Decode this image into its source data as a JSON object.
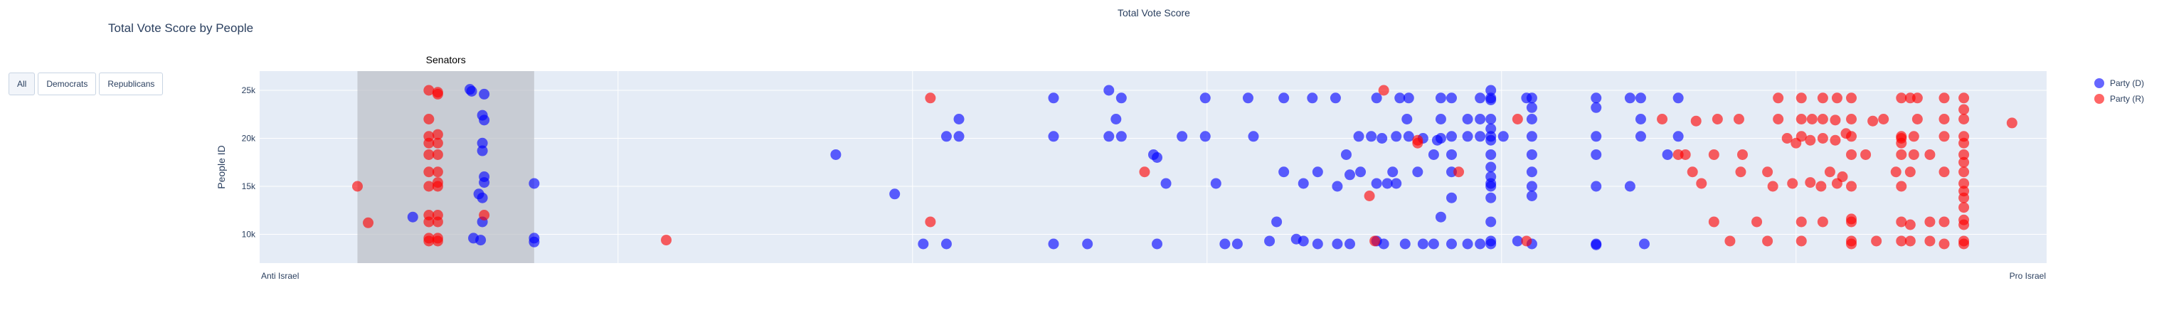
{
  "page": {
    "title": "Total Vote Score by People"
  },
  "filters": {
    "buttons": [
      {
        "label": "All"
      },
      {
        "label": "Democrats"
      },
      {
        "label": "Republicans"
      }
    ]
  },
  "legend": {
    "dem_label": "Party (D)",
    "rep_label": "Party (R)"
  },
  "chart_data": {
    "type": "scatter",
    "title": "Total Vote Score",
    "xlabel": "",
    "ylabel": "People ID",
    "x_range": [
      0,
      100
    ],
    "ylim": [
      7000,
      27000
    ],
    "yticks": [
      10000,
      15000,
      20000,
      25000
    ],
    "ytick_labels": [
      "10k",
      "15k",
      "20k",
      "25k"
    ],
    "x_end_labels": {
      "left": "Anti Israel",
      "right": "Pro Israel"
    },
    "grid": true,
    "legend_position": "right",
    "colors": {
      "dem": "#0000ff",
      "rep": "#ff0000",
      "shade": "#bcbfc6",
      "plot_bg": "#e5ecf6",
      "grid": "#ffffff"
    },
    "annotations": [
      {
        "text": "Senators",
        "x": [
          5.4,
          15.3
        ]
      }
    ],
    "series": [
      {
        "name": "Party (D)",
        "points": [
          [
            8.5,
            11800
          ],
          [
            11.9,
            9600
          ],
          [
            12.2,
            14200
          ],
          [
            11.7,
            25100
          ],
          [
            11.8,
            24900
          ],
          [
            12.5,
            24600
          ],
          [
            12.4,
            22400
          ],
          [
            12.5,
            21900
          ],
          [
            12.4,
            19500
          ],
          [
            12.4,
            18700
          ],
          [
            12.5,
            16000
          ],
          [
            12.5,
            15400
          ],
          [
            12.4,
            13800
          ],
          [
            12.4,
            11300
          ],
          [
            12.3,
            9400
          ],
          [
            15.3,
            15300
          ],
          [
            15.3,
            9200
          ],
          [
            15.3,
            9600
          ],
          [
            32.2,
            18300
          ],
          [
            35.5,
            14200
          ],
          [
            37.1,
            9000
          ],
          [
            38.4,
            9000
          ],
          [
            38.4,
            20200
          ],
          [
            39.1,
            22000
          ],
          [
            39.1,
            20200
          ],
          [
            44.4,
            9000
          ],
          [
            44.4,
            24200
          ],
          [
            44.4,
            20200
          ],
          [
            46.3,
            9000
          ],
          [
            47.5,
            25000
          ],
          [
            47.5,
            20200
          ],
          [
            47.9,
            22000
          ],
          [
            48.2,
            20200
          ],
          [
            48.2,
            24200
          ],
          [
            50.0,
            18300
          ],
          [
            50.2,
            9000
          ],
          [
            50.2,
            18000
          ],
          [
            50.7,
            15300
          ],
          [
            51.6,
            20200
          ],
          [
            52.9,
            24200
          ],
          [
            52.9,
            20200
          ],
          [
            53.5,
            15300
          ],
          [
            54.0,
            9000
          ],
          [
            54.7,
            9000
          ],
          [
            55.3,
            24200
          ],
          [
            55.6,
            20200
          ],
          [
            56.5,
            9300
          ],
          [
            56.9,
            11300
          ],
          [
            57.3,
            16500
          ],
          [
            57.3,
            24200
          ],
          [
            58.0,
            9500
          ],
          [
            58.4,
            15300
          ],
          [
            58.4,
            9300
          ],
          [
            58.9,
            24200
          ],
          [
            59.2,
            16500
          ],
          [
            59.2,
            9000
          ],
          [
            60.2,
            24200
          ],
          [
            60.3,
            15000
          ],
          [
            60.3,
            9000
          ],
          [
            60.8,
            18300
          ],
          [
            61.0,
            9000
          ],
          [
            61.0,
            16200
          ],
          [
            61.5,
            20200
          ],
          [
            61.6,
            16500
          ],
          [
            62.2,
            20200
          ],
          [
            62.5,
            9300
          ],
          [
            62.5,
            24200
          ],
          [
            62.5,
            15300
          ],
          [
            62.8,
            20000
          ],
          [
            62.9,
            9000
          ],
          [
            63.4,
            16500
          ],
          [
            63.1,
            15300
          ],
          [
            63.6,
            15300
          ],
          [
            63.6,
            20200
          ],
          [
            63.8,
            24200
          ],
          [
            64.1,
            9000
          ],
          [
            64.2,
            22000
          ],
          [
            64.3,
            20200
          ],
          [
            64.3,
            24200
          ],
          [
            64.8,
            16500
          ],
          [
            65.1,
            9000
          ],
          [
            65.1,
            20000
          ],
          [
            65.7,
            9000
          ],
          [
            65.7,
            18300
          ],
          [
            65.9,
            19800
          ],
          [
            66.1,
            11800
          ],
          [
            66.1,
            20000
          ],
          [
            66.1,
            22000
          ],
          [
            66.1,
            24200
          ],
          [
            66.7,
            13800
          ],
          [
            66.7,
            9000
          ],
          [
            66.7,
            16500
          ],
          [
            66.7,
            18300
          ],
          [
            66.7,
            20200
          ],
          [
            66.7,
            24200
          ],
          [
            67.6,
            22000
          ],
          [
            67.6,
            9000
          ],
          [
            67.6,
            20200
          ],
          [
            68.3,
            22000
          ],
          [
            68.3,
            24200
          ],
          [
            68.3,
            9000
          ],
          [
            68.3,
            20200
          ],
          [
            68.9,
            9000
          ],
          [
            68.9,
            9300
          ],
          [
            68.9,
            11300
          ],
          [
            68.9,
            13800
          ],
          [
            68.9,
            15000
          ],
          [
            68.9,
            16000
          ],
          [
            68.9,
            17000
          ],
          [
            68.9,
            18300
          ],
          [
            68.9,
            20200
          ],
          [
            68.9,
            22000
          ],
          [
            68.9,
            24200
          ],
          [
            68.9,
            25000
          ],
          [
            68.9,
            24000
          ],
          [
            68.9,
            19800
          ],
          [
            68.9,
            21000
          ],
          [
            68.9,
            15300
          ],
          [
            69.6,
            20200
          ],
          [
            70.4,
            9300
          ],
          [
            70.9,
            24200
          ],
          [
            71.2,
            9000
          ],
          [
            71.2,
            24200
          ],
          [
            71.2,
            22000
          ],
          [
            71.2,
            20200
          ],
          [
            71.2,
            18300
          ],
          [
            71.2,
            16500
          ],
          [
            71.2,
            15000
          ],
          [
            71.2,
            14000
          ],
          [
            71.2,
            23200
          ],
          [
            74.8,
            24200
          ],
          [
            74.8,
            20200
          ],
          [
            74.8,
            18300
          ],
          [
            74.8,
            15000
          ],
          [
            74.8,
            9000
          ],
          [
            74.8,
            8900
          ],
          [
            74.8,
            23200
          ],
          [
            76.7,
            15000
          ],
          [
            76.7,
            24200
          ],
          [
            77.3,
            24200
          ],
          [
            77.3,
            20200
          ],
          [
            77.3,
            22000
          ],
          [
            77.5,
            9000
          ],
          [
            78.8,
            18300
          ],
          [
            79.4,
            20200
          ],
          [
            79.4,
            24200
          ]
        ]
      },
      {
        "name": "Party (R)",
        "points": [
          [
            5.4,
            15000
          ],
          [
            6.0,
            11200
          ],
          [
            9.4,
            25000
          ],
          [
            9.4,
            22000
          ],
          [
            9.4,
            20200
          ],
          [
            9.4,
            19500
          ],
          [
            9.4,
            18300
          ],
          [
            9.4,
            16500
          ],
          [
            9.4,
            15000
          ],
          [
            9.4,
            12000
          ],
          [
            9.4,
            11300
          ],
          [
            9.4,
            9600
          ],
          [
            9.4,
            9300
          ],
          [
            9.9,
            24800
          ],
          [
            9.9,
            24600
          ],
          [
            9.9,
            20400
          ],
          [
            9.9,
            19500
          ],
          [
            9.9,
            18300
          ],
          [
            9.9,
            16500
          ],
          [
            9.9,
            15000
          ],
          [
            9.9,
            15400
          ],
          [
            9.9,
            12000
          ],
          [
            9.9,
            11300
          ],
          [
            9.9,
            9600
          ],
          [
            9.9,
            9300
          ],
          [
            12.5,
            12000
          ],
          [
            22.7,
            9400
          ],
          [
            37.5,
            24200
          ],
          [
            37.5,
            11300
          ],
          [
            49.5,
            16500
          ],
          [
            62.4,
            9300
          ],
          [
            62.9,
            25000
          ],
          [
            62.1,
            14000
          ],
          [
            64.8,
            19800
          ],
          [
            64.8,
            19500
          ],
          [
            67.1,
            16500
          ],
          [
            70.4,
            22000
          ],
          [
            70.9,
            9300
          ],
          [
            78.5,
            22000
          ],
          [
            79.4,
            18300
          ],
          [
            79.8,
            18300
          ],
          [
            80.2,
            16500
          ],
          [
            80.4,
            21800
          ],
          [
            80.7,
            15300
          ],
          [
            81.4,
            11300
          ],
          [
            81.4,
            18300
          ],
          [
            81.6,
            22000
          ],
          [
            82.8,
            22000
          ],
          [
            82.3,
            9300
          ],
          [
            82.9,
            16500
          ],
          [
            83.0,
            18300
          ],
          [
            83.8,
            11300
          ],
          [
            84.4,
            16500
          ],
          [
            84.4,
            9300
          ],
          [
            84.7,
            15000
          ],
          [
            85.0,
            24200
          ],
          [
            85.0,
            22000
          ],
          [
            85.5,
            20000
          ],
          [
            85.8,
            15300
          ],
          [
            86.0,
            19500
          ],
          [
            86.3,
            11300
          ],
          [
            86.3,
            9300
          ],
          [
            86.3,
            20200
          ],
          [
            86.3,
            24200
          ],
          [
            86.3,
            22000
          ],
          [
            86.8,
            19800
          ],
          [
            86.8,
            15400
          ],
          [
            86.9,
            22000
          ],
          [
            87.4,
            15000
          ],
          [
            87.5,
            22000
          ],
          [
            87.5,
            24200
          ],
          [
            87.5,
            11300
          ],
          [
            87.5,
            20000
          ],
          [
            87.9,
            16500
          ],
          [
            88.2,
            21900
          ],
          [
            88.2,
            19800
          ],
          [
            88.3,
            24200
          ],
          [
            88.3,
            15300
          ],
          [
            88.6,
            16000
          ],
          [
            88.8,
            20500
          ],
          [
            89.1,
            18300
          ],
          [
            89.1,
            22000
          ],
          [
            89.1,
            24200
          ],
          [
            89.1,
            20200
          ],
          [
            89.1,
            9300
          ],
          [
            89.1,
            9000
          ],
          [
            89.1,
            11300
          ],
          [
            89.1,
            11600
          ],
          [
            89.1,
            15000
          ],
          [
            89.9,
            18300
          ],
          [
            90.3,
            21800
          ],
          [
            90.5,
            9300
          ],
          [
            90.9,
            22000
          ],
          [
            91.6,
            16500
          ],
          [
            91.9,
            20200
          ],
          [
            91.9,
            24200
          ],
          [
            91.9,
            20000
          ],
          [
            91.9,
            19500
          ],
          [
            91.9,
            18300
          ],
          [
            91.9,
            15000
          ],
          [
            91.9,
            11300
          ],
          [
            91.9,
            9300
          ],
          [
            92.4,
            16500
          ],
          [
            92.4,
            24200
          ],
          [
            92.4,
            11000
          ],
          [
            92.4,
            9300
          ],
          [
            92.6,
            20200
          ],
          [
            92.6,
            18300
          ],
          [
            92.8,
            24200
          ],
          [
            92.8,
            22000
          ],
          [
            93.5,
            18300
          ],
          [
            93.5,
            11300
          ],
          [
            93.5,
            9300
          ],
          [
            94.3,
            24200
          ],
          [
            94.3,
            22000
          ],
          [
            94.3,
            20200
          ],
          [
            94.3,
            16500
          ],
          [
            94.3,
            11300
          ],
          [
            94.3,
            9000
          ],
          [
            95.4,
            24200
          ],
          [
            95.4,
            23000
          ],
          [
            95.4,
            22000
          ],
          [
            95.4,
            20200
          ],
          [
            95.4,
            19500
          ],
          [
            95.4,
            18300
          ],
          [
            95.4,
            17500
          ],
          [
            95.4,
            16500
          ],
          [
            95.4,
            15300
          ],
          [
            95.4,
            14500
          ],
          [
            95.4,
            13800
          ],
          [
            95.4,
            12800
          ],
          [
            95.4,
            11500
          ],
          [
            95.4,
            11000
          ],
          [
            95.4,
            9300
          ],
          [
            95.4,
            9000
          ],
          [
            98.1,
            21600
          ]
        ]
      }
    ]
  }
}
